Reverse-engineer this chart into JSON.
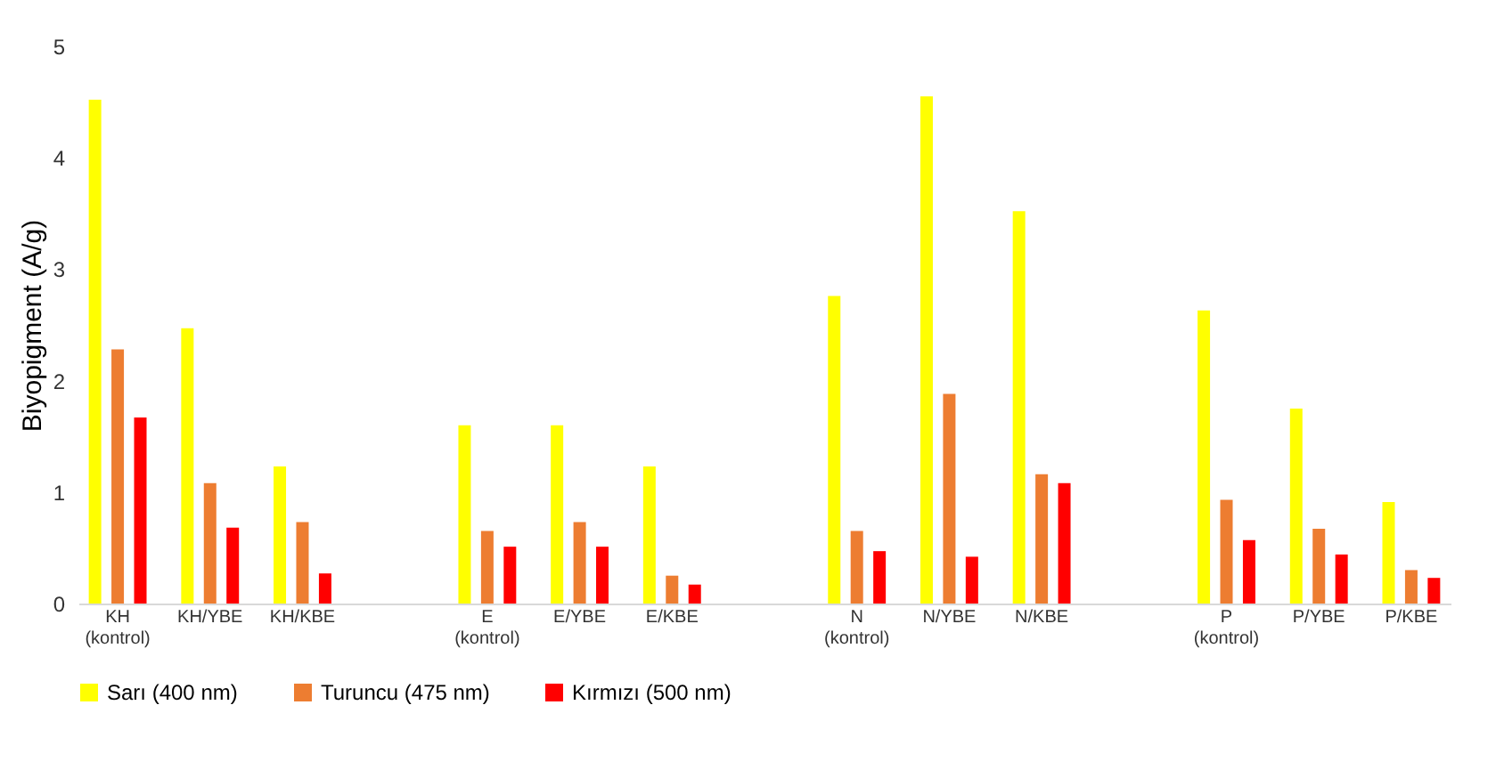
{
  "chart_data": {
    "type": "bar",
    "ylabel": "Biyopigment (A/g)",
    "categories": [
      "KH (kontrol)",
      "KH/YBE",
      "KH/KBE",
      null,
      "E (kontrol)",
      "E/YBE",
      "E/KBE",
      null,
      "N (kontrol)",
      "N/YBE",
      "N/KBE",
      null,
      "P (kontrol)",
      "P/YBE",
      "P/KBE"
    ],
    "series": [
      {
        "name": "Sarı (400 nm)",
        "color": "#ffff00",
        "values": [
          4.52,
          2.47,
          1.23,
          null,
          1.6,
          1.6,
          1.23,
          null,
          2.76,
          4.55,
          3.52,
          null,
          2.63,
          1.75,
          0.91
        ]
      },
      {
        "name": "Turuncu (475 nm)",
        "color": "#ed7d31",
        "values": [
          2.28,
          1.08,
          0.73,
          null,
          0.65,
          0.73,
          0.25,
          null,
          0.65,
          1.88,
          1.16,
          null,
          0.93,
          0.67,
          0.3
        ]
      },
      {
        "name": "Kırmızı (500 nm)",
        "color": "#ff0000",
        "values": [
          1.67,
          0.68,
          0.27,
          null,
          0.51,
          0.51,
          0.17,
          null,
          0.47,
          0.42,
          1.08,
          null,
          0.57,
          0.44,
          0.23
        ]
      }
    ],
    "ylim": [
      0,
      5
    ],
    "yticks": [
      0,
      1,
      2,
      3,
      4,
      5
    ],
    "grid": false,
    "legend": "bottom"
  }
}
